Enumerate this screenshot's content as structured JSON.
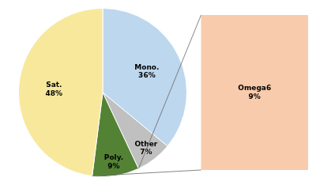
{
  "chart_data": {
    "type": "pie",
    "categories": [
      "Mono.",
      "Other",
      "Poly.",
      "Sat."
    ],
    "values": [
      36,
      7,
      9,
      48
    ],
    "value_labels": [
      "36%",
      "7%",
      "9%",
      "48%"
    ],
    "colors": [
      "#BDD7EE",
      "#C0C0C0",
      "#548235",
      "#F7E89C"
    ],
    "data_labels": true,
    "annotations": [
      {
        "text": "Omega6\n9%",
        "color": "#F8CBAD",
        "category": "Poly."
      }
    ]
  }
}
